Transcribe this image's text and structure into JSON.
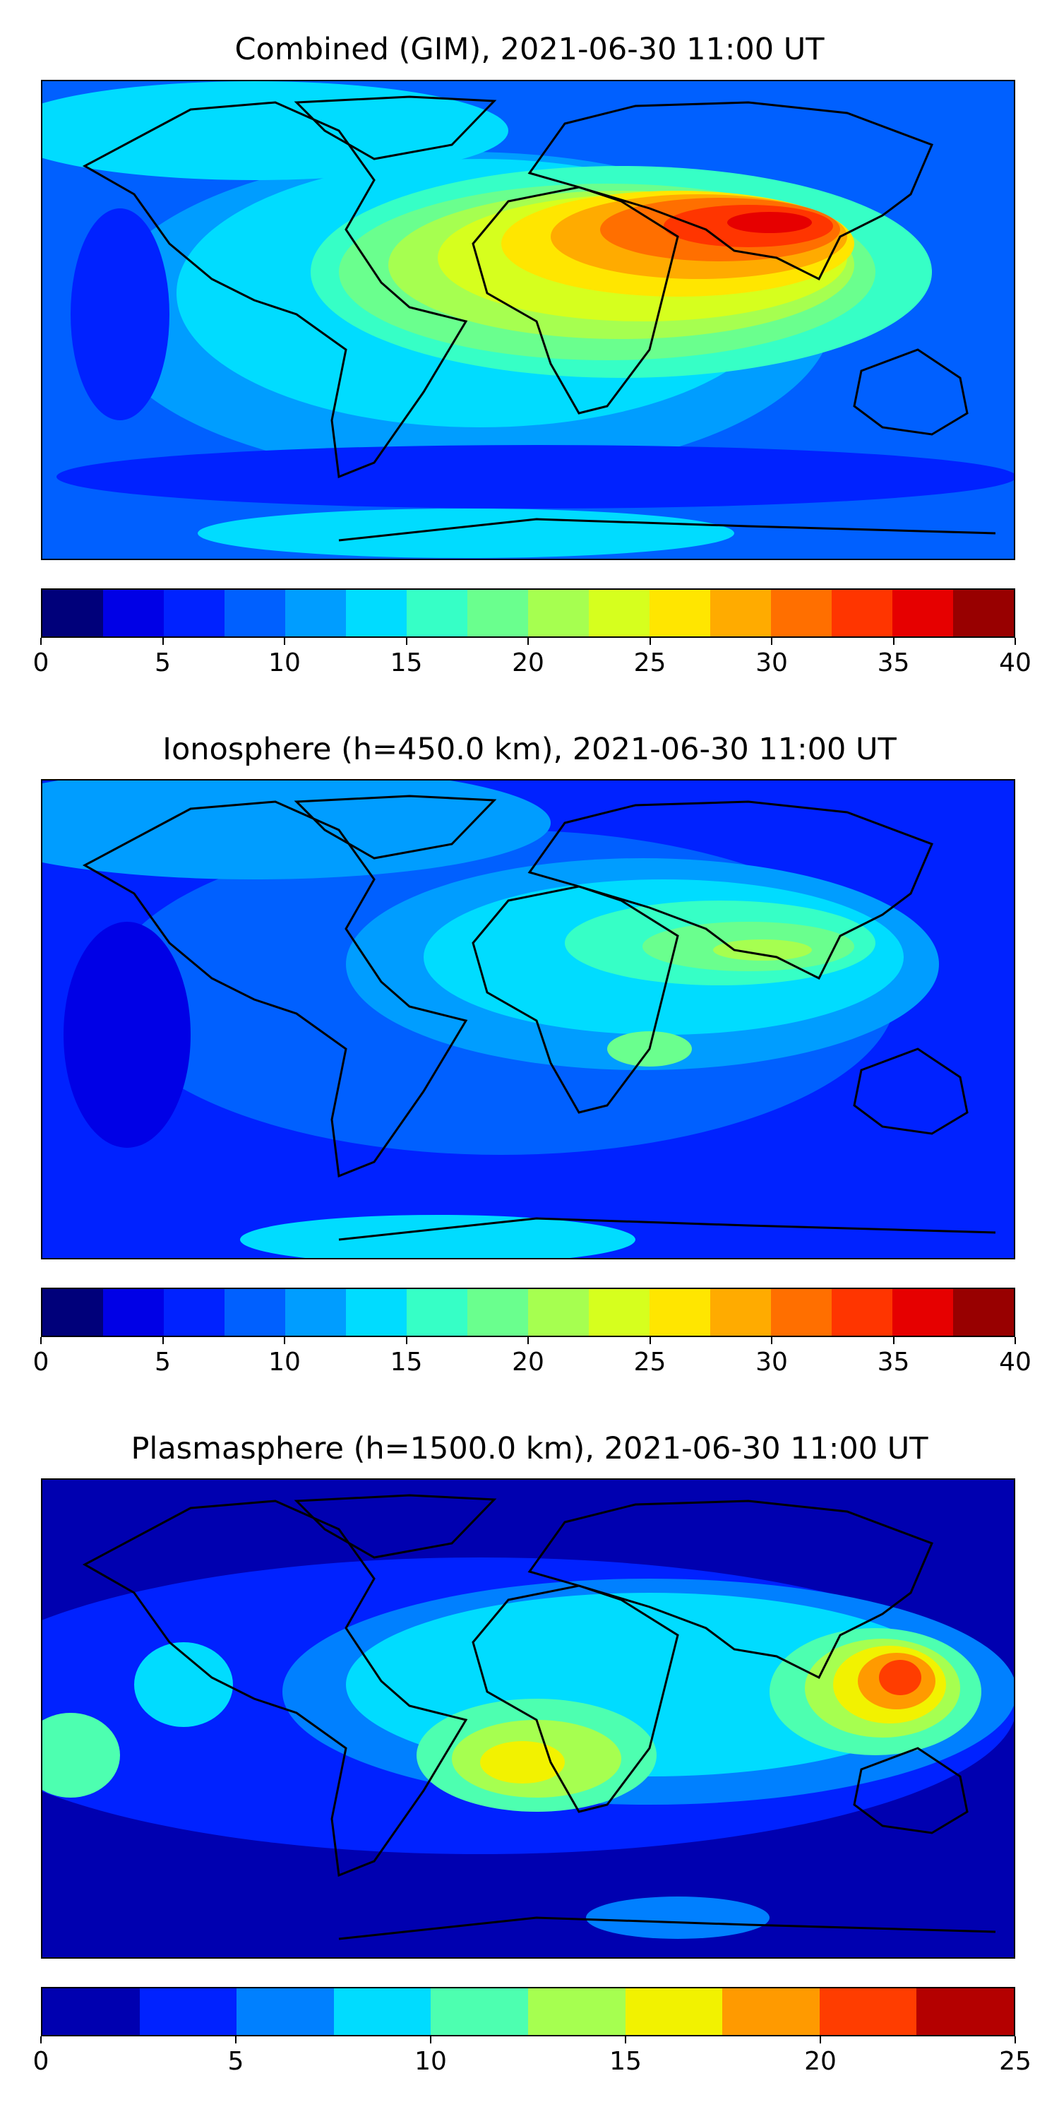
{
  "panels": [
    {
      "id": "combined",
      "title": "Combined (GIM), 2021-06-30 11:00 UT",
      "colorbar": {
        "ticks": [
          "0",
          "5",
          "10",
          "15",
          "20",
          "25",
          "30",
          "35",
          "40"
        ],
        "levels": [
          "#00007a",
          "#0000e6",
          "#0022ff",
          "#0060ff",
          "#009dff",
          "#00dcff",
          "#36ffc6",
          "#6aff8e",
          "#a6ff50",
          "#d6ff1e",
          "#ffe600",
          "#ffab00",
          "#ff6f00",
          "#ff3500",
          "#e60000",
          "#980000"
        ]
      }
    },
    {
      "id": "ionosphere",
      "title": "Ionosphere  (h=450.0 km), 2021-06-30 11:00 UT",
      "colorbar": {
        "ticks": [
          "0",
          "5",
          "10",
          "15",
          "20",
          "25",
          "30",
          "35",
          "40"
        ],
        "levels": [
          "#00007a",
          "#0000e6",
          "#0022ff",
          "#0060ff",
          "#009dff",
          "#00dcff",
          "#36ffc6",
          "#6aff8e",
          "#a6ff50",
          "#d6ff1e",
          "#ffe600",
          "#ffab00",
          "#ff6f00",
          "#ff3500",
          "#e60000",
          "#980000"
        ]
      }
    },
    {
      "id": "plasmasphere",
      "title": "Plasmasphere (h=1500.0 km), 2021-06-30 11:00 UT",
      "colorbar": {
        "ticks": [
          "0",
          "5",
          "10",
          "15",
          "20",
          "25"
        ],
        "levels": [
          "#0000b0",
          "#0022ff",
          "#0080ff",
          "#00dcff",
          "#4dffb0",
          "#a6ff50",
          "#f2f200",
          "#ff9a00",
          "#ff3d00",
          "#b40000"
        ]
      }
    }
  ]
}
